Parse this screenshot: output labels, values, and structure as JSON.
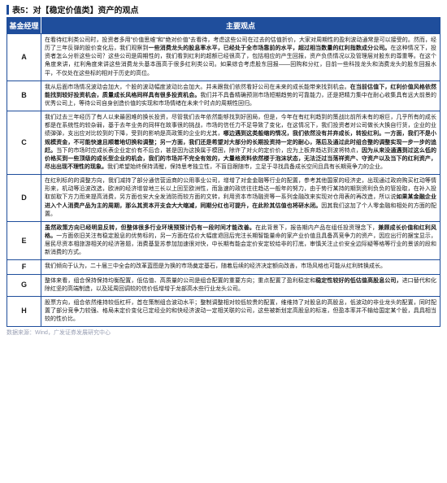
{
  "table": {
    "title_prefix": "表5：对【",
    "title_highlight": "稳定价值类",
    "title_suffix": "】资产的观点",
    "header_left": "基金经理",
    "header_right": "主要观点",
    "rows": [
      {
        "label": "A",
        "segments": [
          {
            "t": "在看待红利类公司时，投资者多用\"价值思维\"和\"绝对价值\"去看待，考虑这些公司在过去的估值折价，大家对周期性的盈利波动通常是可以接受的。然而，经历了三年反弹的股价变化后，我们观察到",
            "b": false
          },
          {
            "t": "一些消费龙头的股息率水平，已经处于全市场靠前的水平，超过相当数量的红利指数成分公司。",
            "b": true
          },
          {
            "t": "在这种情况下，投资者怎么分析这些公司？这些公司是周期性的，我们看到红利的超额已经很高了，包括相应的产生回报，资产负债情况以及管理层对股东的尊重等。在这个角度来讲，红利角度来讲这些消费龙头基本面高于很多红利类公司。如果综合考虑股东回报——回购和分红，目前一些科技龙头和消费龙头的股东回报水平，不仅处在这些标的相对于历史的高位。",
            "b": false
          }
        ]
      },
      {
        "label": "B",
        "segments": [
          {
            "t": "我从后面市场情况波动会加大，个股的波动幅度波动比会加大。并未跟我们依然看好公司在未来的成长能带来找到机会。",
            "b": false
          },
          {
            "t": "在当前估值下，红利价值风格依然能找到较好投资机会，质量成长风格同样具有很多投资机会。",
            "b": true
          },
          {
            "t": "我们并不具备精确预测市场短期趋势的可靠能力，还是把精力集中在耐心收集具有远大前景的优秀公司上，等待公司自身创造价值的实现和市场情绪在未来个时点的周期性回归。",
            "b": false
          }
        ]
      },
      {
        "label": "C",
        "segments": [
          {
            "t": "我们过去三年经历了有人以来最困难的换长投资，尽管我们去年依然能够找到好困局，但是，今年在有红利趋到的策战比前所未有的艰巨，几乎所有的成长都是在系统性的较杂弱，基于去年业务的同样在故事很的挑战，市场的信任力不足导致了变化，在这情况下，我们投资者对公司做长大换自行货，企业的业绩弹弹，支出应对比较到的下降，受到的影响是高政策的企业的尤其，",
            "b": false
          },
          {
            "t": "哪边遇到这类般缩的情况，我们依然没有并弃成长，转投红利。一方面，我们不是小规模资金，不可能快速且顺着地切换和调整；另一方面，我们还是希望对大部分的长期投资持一定的耐心，落后及通过此时组合整的调整实现一步一步的追赶。",
            "b": true
          },
          {
            "t": "当下的市场时应成长表企业定价有不后合，甚是因为这换属于模困，除许了对火的定价价，应为上板弃趋达到波将特点，",
            "b": false
          },
          {
            "t": "因为从来没通遇到过这么低的价格买到一些顶级的成长型企业的机会，我们的市场并不完全有效的，大量格资料依然楼于泡沫状态，无法泛过当荡祥资产、守资产以及当下的红利资产，尽出出现不理性的现象。",
            "b": true
          },
          {
            "t": "我们希望始终保持清醒，保持思考独立性，不盲目跟随市，立足于寻找具备成长空间且具有长期竞争力的企业。",
            "b": false
          }
        ]
      },
      {
        "label": "D",
        "segments": [
          {
            "t": "在红利标的的调整方向，我们减持了部分通信营运商的公用事业公司，增增了对金金融等行业的配置，参考其他国家的经济史，出现通过政府购买杠动等情形来，机动等沿波改选，欧洲的经济增曾地三长以上回至欧洲性，而急速的政信往往趋达一般年的努力，由于势行某持的期到资利负负的管投取，在补入投取前取下方力而来提高消费，另方面也安大全发消防而较方面的文转，利用资本市场融资等一系列金融改来实现对仓用表的再改造，所以说",
            "b": false
          },
          {
            "t": "如果某金融企业进入个人消费产品为主的周期，那么其资本开支会大大缩减，同期分红也可提升，在此阶其估值也将研水闭。",
            "b": true
          },
          {
            "t": "因其我们这加了个人零金融和相处的方面的配置。",
            "b": false
          }
        ]
      },
      {
        "label": "E",
        "segments": [
          {
            "t": "虽然政策方向已经明显反转，但整体很多行业环境预预计仍有一段时间才能改善。",
            "b": true
          },
          {
            "t": "在此背景下，报告期内产品在组任投资理念下，",
            "b": false
          },
          {
            "t": "兼顾成长价值和红利风格。",
            "b": true
          },
          {
            "t": "一方面依旧关注有稳定股息的优势标的，另一方面在估价大幅度退回后完注长期智能量命的家产业价值且具备高竞争力的资产，因应出行的据宝显示，居民尽资本相旅游相关的经济答题，消费基复苏参加加速很对快，中长期有能会定价安定较给非的打底，审慎关注止价安全边际疑等格等行业的景该的段和新消费的方式。",
            "b": false
          }
        ]
      },
      {
        "label": "F",
        "segments": [
          {
            "t": "我们倾向于认为，二十届三中全会的改革蓝图是为换的市场奠定基石，随着后续的经济决定额向改善，市场风格也可能从红利转换成长。",
            "b": false
          }
        ]
      },
      {
        "label": "G",
        "segments": [
          {
            "t": "整体来看，组合保持保持均衡配置，低估值、高质量的公司是组合配置的重要方向；重点配置了盈利稳定和",
            "b": false
          },
          {
            "t": "稳定性较好的低估值高股息公司，",
            "b": true
          },
          {
            "t": "进口替代和化除红坚的高端制造，以及延周回调较的信价低增增于龙部高水些行业龙头公司。",
            "b": false
          }
        ]
      },
      {
        "label": "H",
        "segments": [
          {
            "t": "股票方向，组合依然维持较低杠杆，首在策制组合波动水平；整制调整相对较低较贵的配置，维维持了对股息的高股息，低波动的非业龙头的配置，同时配置了部分竞争力较强、格局未定价变化已定经业的和快经济波动一定相关联的公司，这些被新划定高股息的标准，但盈本率并不输给国定某个股，具具相当较的性价比。",
            "b": false
          }
        ]
      }
    ],
    "footer": "数据来源：Wind，广发证券发展研究中心"
  },
  "style": {
    "header_bg": "#1f4e9c",
    "border_color": "#1f4e9c",
    "title_fontsize": 10,
    "header_fontsize": 9,
    "body_fontsize": 7,
    "footer_color": "#9aa0b4"
  }
}
